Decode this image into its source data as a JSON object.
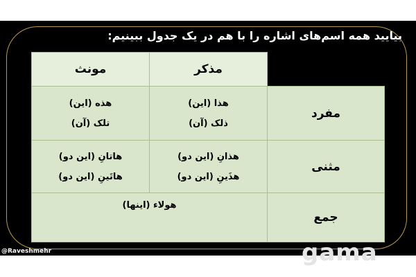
{
  "title": "بیایید همه اسم‌های اشاره را با هم در یک جدول ببینیم:",
  "table": {
    "headers": [
      "مذکر",
      "مونث"
    ],
    "rows": [
      {
        "label": "مفرد",
        "masculine": [
          "هذا (این)",
          "ذلک (آن)"
        ],
        "feminine": [
          "هذه (این)",
          "تلک (آن)"
        ]
      },
      {
        "label": "مثنی",
        "masculine": [
          "هذانِ (این دو)",
          "هذَینِ (این دو)"
        ],
        "feminine": [
          "هاتانِ (این دو)",
          "هاتَینِ (این دو)"
        ]
      },
      {
        "label": "جمع",
        "common": "هولاء (اینها)"
      }
    ]
  },
  "credit": "@Raveshmehr",
  "watermark": "Gama",
  "colors": {
    "frame": "#b89a4e",
    "cell": "#d9e6cc",
    "background": "#000000"
  }
}
